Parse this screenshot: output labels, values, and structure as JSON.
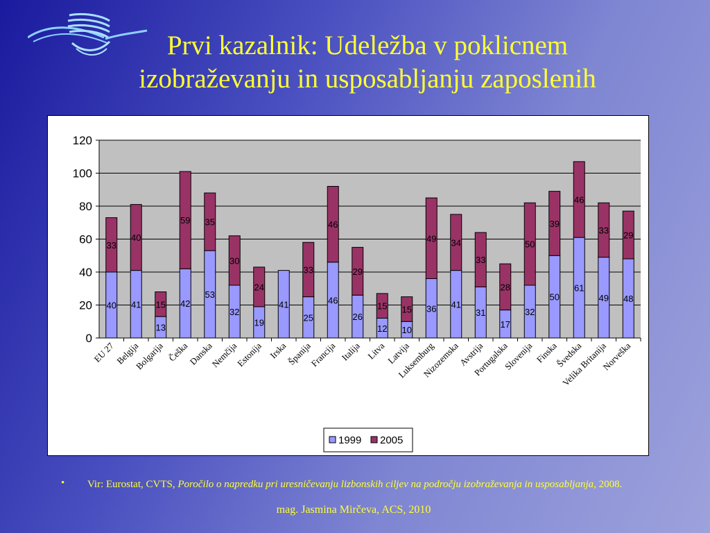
{
  "slide": {
    "title_line1": "Prvi kazalnik: Udeležba v poklicnem",
    "title_line2": "izobraževanju in usposabljanju zaposlenih",
    "source_prefix": "Vir: Eurostat, CVTS, ",
    "source_italic": "Poročilo o napredku pri uresničevanju lizbonskih ciljev na področju izobraževanja in usposabljanja,",
    "source_suffix": " 2008.",
    "author": "mag. Jasmina Mirčeva, ACS, 2010",
    "bullet": "•"
  },
  "colors": {
    "title": "#ffff33",
    "series_1999": "#9999ff",
    "series_2005": "#993366",
    "plot_bg": "#c0c0c0"
  },
  "chart_data": {
    "type": "bar",
    "stacked": true,
    "title": "",
    "xlabel": "",
    "ylabel": "",
    "ylim": [
      0,
      120
    ],
    "yticks": [
      0,
      20,
      40,
      60,
      80,
      100,
      120
    ],
    "grid": true,
    "legend": "bottom-center",
    "categories": [
      "EU 27",
      "Belgija",
      "Bolgarija",
      "Češka",
      "Danska",
      "Nemčija",
      "Estonija",
      "Irska",
      "Španija",
      "Francija",
      "Italija",
      "Litva",
      "Latvija",
      "Luksemburg",
      "Nizozemska",
      "Avstrija",
      "Portugalska",
      "Slovenija",
      "Finska",
      "Švedska",
      "Velika Britanija",
      "Norveška"
    ],
    "series": [
      {
        "name": "1999",
        "values": [
          40,
          41,
          13,
          42,
          53,
          32,
          19,
          41,
          25,
          46,
          26,
          12,
          10,
          36,
          41,
          31,
          17,
          32,
          50,
          61,
          49,
          48
        ]
      },
      {
        "name": "2005",
        "values": [
          33,
          40,
          15,
          59,
          35,
          30,
          24,
          null,
          33,
          46,
          29,
          15,
          15,
          49,
          34,
          33,
          28,
          50,
          39,
          46,
          33,
          29
        ]
      }
    ]
  }
}
